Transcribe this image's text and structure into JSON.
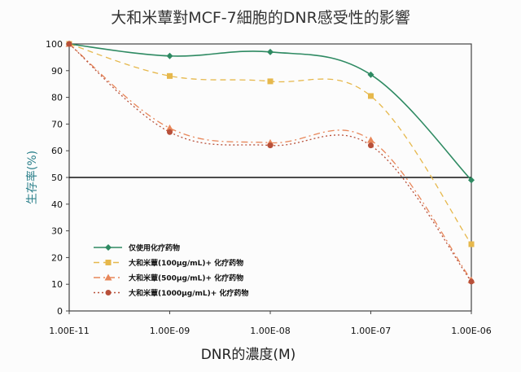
{
  "chart_data": {
    "type": "line",
    "title": "大和米蕈對MCF-7細胞的DNR感受性的影響",
    "xlabel": "DNR的濃度(M)",
    "ylabel": "生存率(%)",
    "categories": [
      "1.00E-11",
      "1.00E-09",
      "1.00E-08",
      "1.00E-07",
      "1.00E-06"
    ],
    "ylim": [
      0,
      100
    ],
    "yticks": [
      0,
      10,
      20,
      30,
      40,
      50,
      60,
      70,
      80,
      90,
      100
    ],
    "reference_line": 50,
    "grid": false,
    "legend_position": "bottom-left",
    "series": [
      {
        "name": "仅使用化疗药物",
        "values": [
          100,
          95.5,
          97,
          88.5,
          49
        ],
        "color": "#2e8a62",
        "dash": "solid",
        "marker": "diamond"
      },
      {
        "name": "大和米蕈(100μg/mL)+ 化疗药物",
        "values": [
          100,
          88,
          86,
          80.5,
          25
        ],
        "color": "#e6b84c",
        "dash": "dashed",
        "marker": "square"
      },
      {
        "name": "大和米蕈(500μg/mL)+ 化疗药物",
        "values": [
          100,
          68.5,
          63,
          64,
          11.5
        ],
        "color": "#e8875a",
        "dash": "dash-dot",
        "marker": "triangle"
      },
      {
        "name": "大和米蕈(1000μg/mL)+ 化疗药物",
        "values": [
          100,
          67,
          62,
          62,
          11
        ],
        "color": "#b8503a",
        "dash": "dotted",
        "marker": "circle"
      }
    ]
  }
}
